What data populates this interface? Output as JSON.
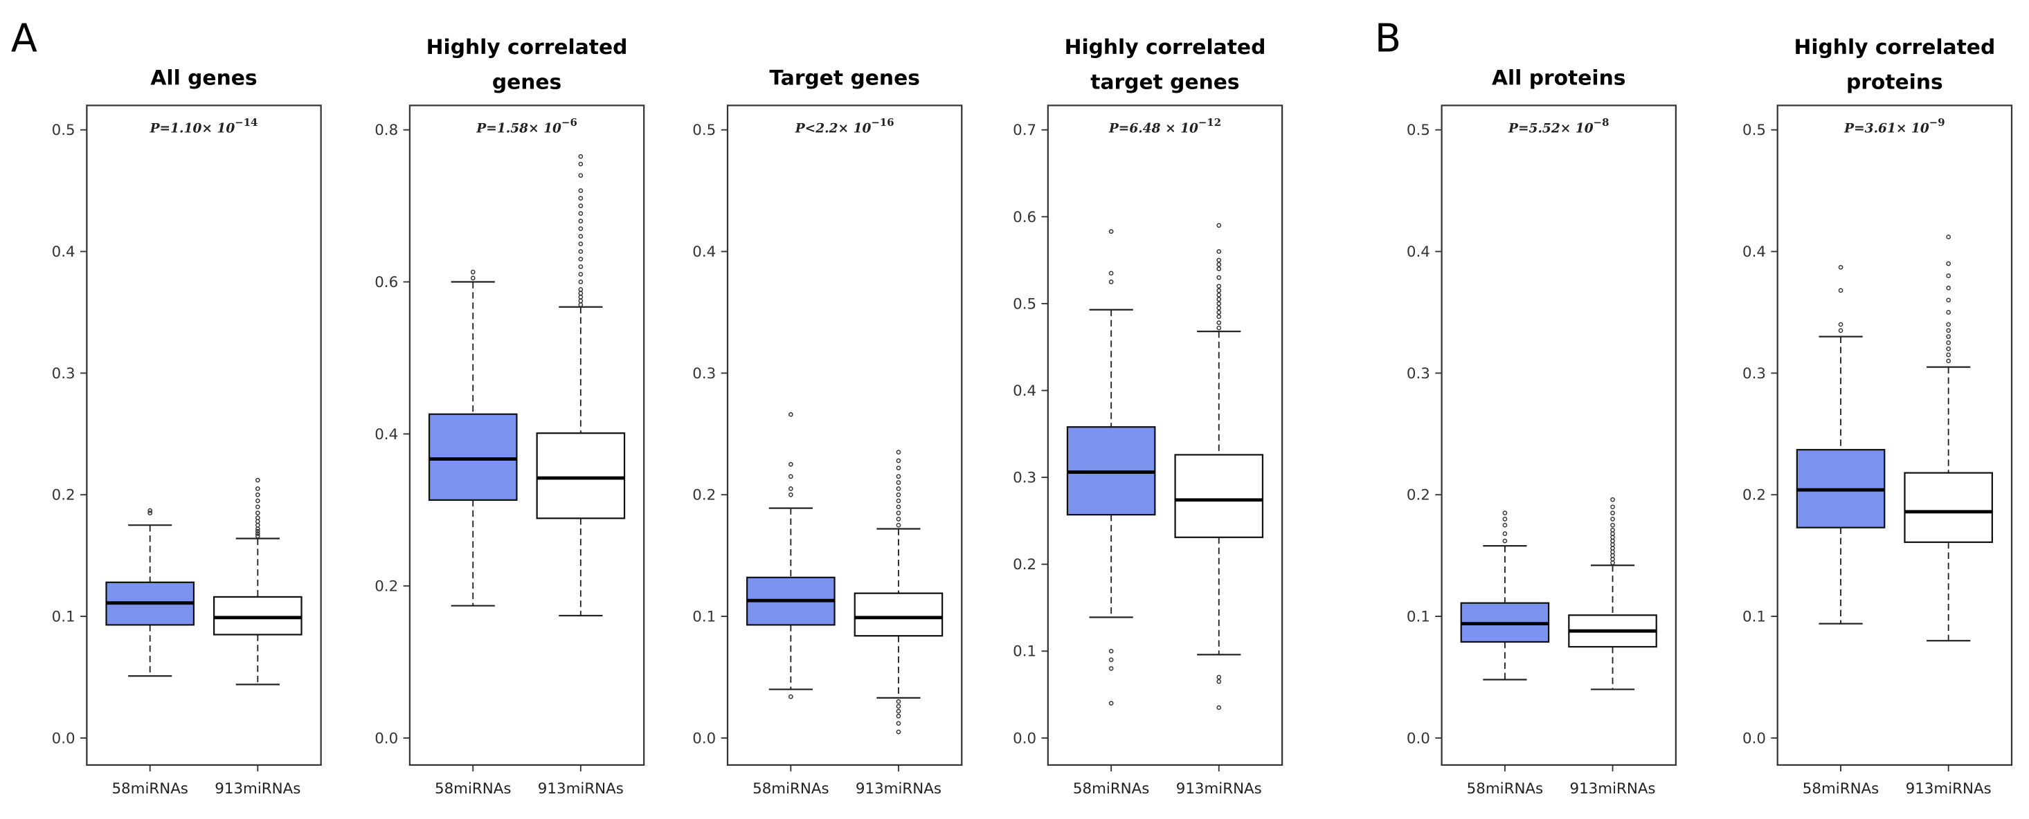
{
  "chart_data": {
    "type": "boxplot",
    "colors": {
      "group1": "#7b93ef",
      "group2": "#ffffff"
    },
    "panel_letters": [
      "A",
      "B"
    ],
    "groups": [
      "58miRNAs",
      "913miRNAs"
    ],
    "panels": [
      {
        "letter": "A",
        "title": [
          "All genes"
        ],
        "pvalue": "P=1.10× 10^−14",
        "ylim": [
          0,
          0.5
        ],
        "yticks": [
          "0.0",
          "0.1",
          "0.2",
          "0.3",
          "0.4",
          "0.5"
        ],
        "ytick_values": [
          0,
          0.1,
          0.2,
          0.3,
          0.4,
          0.5
        ],
        "boxes": [
          {
            "group": "58miRNAs",
            "min": 0.051,
            "q1": 0.093,
            "median": 0.111,
            "q3": 0.128,
            "max": 0.175,
            "outliers": [
              0.185,
              0.187
            ]
          },
          {
            "group": "913miRNAs",
            "min": 0.044,
            "q1": 0.085,
            "median": 0.099,
            "q3": 0.116,
            "max": 0.164,
            "outliers": [
              0.166,
              0.168,
              0.17,
              0.172,
              0.175,
              0.178,
              0.181,
              0.185,
              0.19,
              0.195,
              0.2,
              0.205,
              0.212
            ]
          }
        ]
      },
      {
        "letter": "",
        "title": [
          "Highly correlated",
          "genes"
        ],
        "pvalue": "P=1.58× 10^−6",
        "ylim": [
          0,
          0.8
        ],
        "yticks": [
          "0.0",
          "0.2",
          "0.4",
          "0.6",
          "0.8"
        ],
        "ytick_values": [
          0,
          0.2,
          0.4,
          0.6,
          0.8
        ],
        "boxes": [
          {
            "group": "58miRNAs",
            "min": 0.174,
            "q1": 0.313,
            "median": 0.367,
            "q3": 0.426,
            "max": 0.6,
            "outliers": [
              0.605,
              0.613
            ]
          },
          {
            "group": "913miRNAs",
            "min": 0.161,
            "q1": 0.289,
            "median": 0.342,
            "q3": 0.401,
            "max": 0.567,
            "outliers": [
              0.57,
              0.575,
              0.58,
              0.585,
              0.59,
              0.6,
              0.61,
              0.62,
              0.63,
              0.64,
              0.65,
              0.66,
              0.67,
              0.68,
              0.69,
              0.7,
              0.71,
              0.72,
              0.74,
              0.755,
              0.765
            ]
          }
        ]
      },
      {
        "letter": "",
        "title": [
          "Target genes"
        ],
        "pvalue": "P<2.2× 10^−16",
        "ylim": [
          0,
          0.5
        ],
        "yticks": [
          "0.0",
          "0.1",
          "0.2",
          "0.3",
          "0.4",
          "0.5"
        ],
        "ytick_values": [
          0,
          0.1,
          0.2,
          0.3,
          0.4,
          0.5
        ],
        "boxes": [
          {
            "group": "58miRNAs",
            "min": 0.04,
            "q1": 0.093,
            "median": 0.113,
            "q3": 0.132,
            "max": 0.189,
            "outliers": [
              0.034,
              0.2,
              0.205,
              0.215,
              0.225,
              0.266
            ]
          },
          {
            "group": "913miRNAs",
            "min": 0.033,
            "q1": 0.084,
            "median": 0.099,
            "q3": 0.119,
            "max": 0.172,
            "outliers": [
              0.005,
              0.012,
              0.018,
              0.022,
              0.026,
              0.03,
              0.175,
              0.18,
              0.185,
              0.19,
              0.195,
              0.2,
              0.205,
              0.21,
              0.215,
              0.222,
              0.228,
              0.235
            ]
          }
        ]
      },
      {
        "letter": "",
        "title": [
          "Highly correlated",
          "target genes"
        ],
        "pvalue": "P=6.48 × 10^−12",
        "ylim": [
          0,
          0.7
        ],
        "yticks": [
          "0.0",
          "0.1",
          "0.2",
          "0.3",
          "0.4",
          "0.5",
          "0.6",
          "0.7"
        ],
        "ytick_values": [
          0,
          0.1,
          0.2,
          0.3,
          0.4,
          0.5,
          0.6,
          0.7
        ],
        "boxes": [
          {
            "group": "58miRNAs",
            "min": 0.139,
            "q1": 0.257,
            "median": 0.306,
            "q3": 0.358,
            "max": 0.493,
            "outliers": [
              0.04,
              0.08,
              0.09,
              0.1,
              0.525,
              0.535,
              0.583
            ]
          },
          {
            "group": "913miRNAs",
            "min": 0.096,
            "q1": 0.231,
            "median": 0.274,
            "q3": 0.326,
            "max": 0.468,
            "outliers": [
              0.035,
              0.065,
              0.07,
              0.472,
              0.478,
              0.485,
              0.49,
              0.495,
              0.5,
              0.505,
              0.51,
              0.515,
              0.52,
              0.53,
              0.54,
              0.545,
              0.55,
              0.56,
              0.59
            ]
          }
        ]
      },
      {
        "letter": "B",
        "title": [
          "All proteins"
        ],
        "pvalue": "P=5.52× 10^−8",
        "ylim": [
          0,
          0.5
        ],
        "yticks": [
          "0.0",
          "0.1",
          "0.2",
          "0.3",
          "0.4",
          "0.5"
        ],
        "ytick_values": [
          0,
          0.1,
          0.2,
          0.3,
          0.4,
          0.5
        ],
        "boxes": [
          {
            "group": "58miRNAs",
            "min": 0.048,
            "q1": 0.079,
            "median": 0.094,
            "q3": 0.111,
            "max": 0.158,
            "outliers": [
              0.162,
              0.168,
              0.175,
              0.18,
              0.185
            ]
          },
          {
            "group": "913miRNAs",
            "min": 0.04,
            "q1": 0.075,
            "median": 0.088,
            "q3": 0.101,
            "max": 0.142,
            "outliers": [
              0.144,
              0.147,
              0.15,
              0.153,
              0.156,
              0.159,
              0.162,
              0.165,
              0.168,
              0.171,
              0.175,
              0.18,
              0.185,
              0.19,
              0.196
            ]
          }
        ]
      },
      {
        "letter": "",
        "title": [
          "Highly correlated",
          "proteins"
        ],
        "pvalue": "P=3.61× 10^−9",
        "ylim": [
          0,
          0.5
        ],
        "yticks": [
          "0.0",
          "0.1",
          "0.2",
          "0.3",
          "0.4",
          "0.5"
        ],
        "ytick_values": [
          0,
          0.1,
          0.2,
          0.3,
          0.4,
          0.5
        ],
        "boxes": [
          {
            "group": "58miRNAs",
            "min": 0.094,
            "q1": 0.173,
            "median": 0.204,
            "q3": 0.237,
            "max": 0.33,
            "outliers": [
              0.335,
              0.34,
              0.368,
              0.387
            ]
          },
          {
            "group": "913miRNAs",
            "min": 0.08,
            "q1": 0.161,
            "median": 0.186,
            "q3": 0.218,
            "max": 0.305,
            "outliers": [
              0.31,
              0.315,
              0.32,
              0.325,
              0.33,
              0.335,
              0.34,
              0.35,
              0.36,
              0.37,
              0.38,
              0.39,
              0.412
            ]
          }
        ]
      }
    ]
  }
}
